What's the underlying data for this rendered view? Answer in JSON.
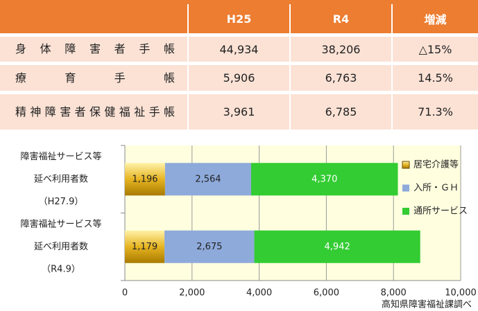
{
  "table": {
    "header": [
      "H25",
      "R4",
      "増減"
    ],
    "rows": [
      [
        "身体障害者手帳",
        "44,934",
        "38,206",
        "△15%"
      ],
      [
        "療育手帳",
        "5,906",
        "6,763",
        "14.5%"
      ],
      [
        "精神障害者保健福祉手帳",
        "3,961",
        "6,785",
        "71.3%"
      ]
    ]
  },
  "chart_data": {
    "type": "stacked_barh",
    "categories": [
      [
        "障害福祉サービス等",
        "延べ利用者数",
        "（H27.9）"
      ],
      [
        "障害福祉サービス等",
        "延べ利用者数",
        "（R4.9）"
      ]
    ],
    "series": [
      {
        "name": "居宅介護等",
        "color": "#e6b422",
        "values": [
          1196,
          1179
        ],
        "value_labels": [
          "1,196",
          "1,179"
        ]
      },
      {
        "name": "入所・ＧＨ",
        "color": "#8eaadb",
        "values": [
          2564,
          2675
        ],
        "value_labels": [
          "2,564",
          "2,675"
        ]
      },
      {
        "name": "通所サービス",
        "color": "#33cc33",
        "values": [
          4370,
          4942
        ],
        "value_labels": [
          "4,370",
          "4,942"
        ]
      }
    ],
    "xlim": [
      0,
      10000
    ],
    "xticks": [
      0,
      {
        "value": 2000,
        "label": "2,000"
      },
      {
        "value": 4000,
        "label": "4,000"
      },
      {
        "value": 6000,
        "label": "6,000"
      },
      {
        "value": 8000,
        "label": "8,000"
      },
      {
        "value": 10000,
        "label": "10,000"
      }
    ],
    "grid": true,
    "legend": "right",
    "source": "高知県障害福祉課調べ"
  }
}
